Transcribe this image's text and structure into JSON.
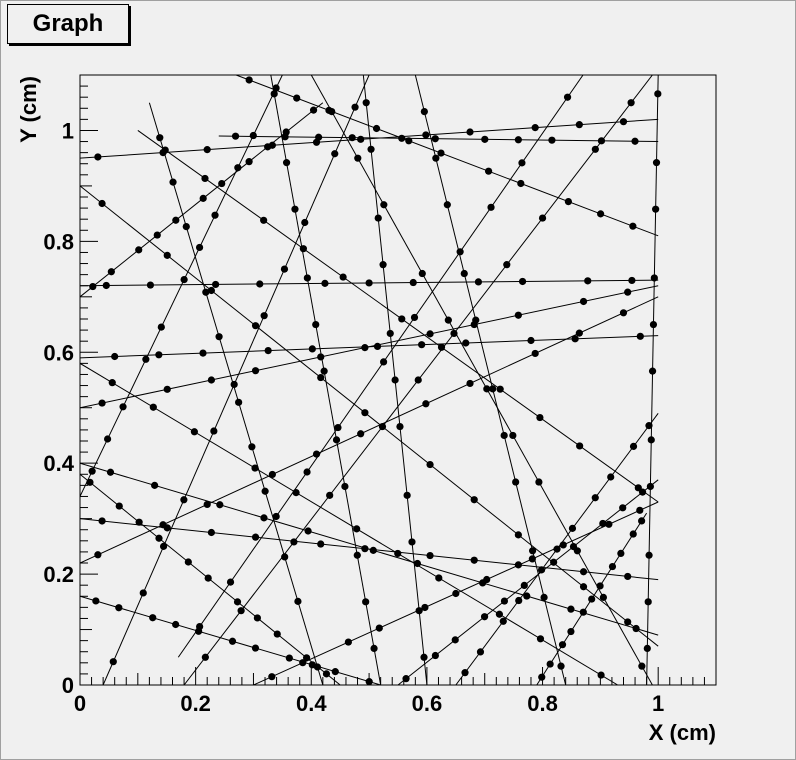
{
  "chart_data": {
    "type": "scatter",
    "title": "Graph",
    "xlabel": "X (cm)",
    "ylabel": "Y (cm)",
    "xlim": [
      0,
      1.1
    ],
    "ylim": [
      0,
      1.1
    ],
    "xticks": [
      "0",
      "0.2",
      "0.4",
      "0.6",
      "0.8",
      "1"
    ],
    "yticks": [
      "0",
      "0.2",
      "0.4",
      "0.6",
      "0.8",
      "1"
    ],
    "grid": false,
    "description_lines": [
      [
        [
          0.0,
          0.95
        ],
        [
          1.0,
          1.02
        ]
      ],
      [
        [
          0.0,
          0.72
        ],
        [
          1.0,
          0.73
        ]
      ],
      [
        [
          0.0,
          0.59
        ],
        [
          1.0,
          0.63
        ]
      ],
      [
        [
          0.0,
          0.5
        ],
        [
          1.0,
          0.72
        ]
      ],
      [
        [
          0.0,
          0.7
        ],
        [
          0.42,
          1.05
        ]
      ],
      [
        [
          0.33,
          1.1
        ],
        [
          0.52,
          0.0
        ]
      ],
      [
        [
          0.49,
          1.1
        ],
        [
          0.6,
          0.0
        ]
      ],
      [
        [
          0.12,
          1.05
        ],
        [
          0.42,
          0.0
        ]
      ],
      [
        [
          0.0,
          0.38
        ],
        [
          0.45,
          0.0
        ]
      ],
      [
        [
          0.0,
          0.16
        ],
        [
          0.52,
          0.0
        ]
      ],
      [
        [
          0.0,
          0.22
        ],
        [
          1.0,
          0.7
        ]
      ],
      [
        [
          0.18,
          0.0
        ],
        [
          0.99,
          1.1
        ]
      ],
      [
        [
          0.0,
          0.58
        ],
        [
          0.93,
          0.0
        ]
      ],
      [
        [
          0.0,
          0.9
        ],
        [
          1.0,
          0.07
        ]
      ],
      [
        [
          0.1,
          1.0
        ],
        [
          1.0,
          0.33
        ]
      ],
      [
        [
          0.27,
          1.1
        ],
        [
          1.0,
          0.81
        ]
      ],
      [
        [
          0.65,
          0.0
        ],
        [
          1.0,
          0.49
        ]
      ],
      [
        [
          0.4,
          1.1
        ],
        [
          0.99,
          0.0
        ]
      ],
      [
        [
          0.0,
          0.3
        ],
        [
          1.0,
          0.19
        ]
      ],
      [
        [
          0.0,
          0.4
        ],
        [
          1.0,
          0.09
        ]
      ],
      [
        [
          0.55,
          0.0
        ],
        [
          1.0,
          0.37
        ]
      ],
      [
        [
          0.79,
          0.0
        ],
        [
          0.98,
          0.31
        ]
      ],
      [
        [
          0.58,
          1.1
        ],
        [
          0.84,
          0.0
        ]
      ],
      [
        [
          0.04,
          0.0
        ],
        [
          0.5,
          1.1
        ]
      ],
      [
        [
          0.17,
          0.05
        ],
        [
          0.87,
          1.1
        ]
      ],
      [
        [
          1.0,
          1.1
        ],
        [
          0.98,
          0.0
        ]
      ],
      [
        [
          0.3,
          0.0
        ],
        [
          1.0,
          0.33
        ]
      ],
      [
        [
          0.0,
          0.34
        ],
        [
          0.35,
          1.1
        ]
      ],
      [
        [
          0.24,
          0.99
        ],
        [
          1.0,
          0.98
        ]
      ]
    ],
    "points_per_line": 11,
    "marker": "filled-circle",
    "marker_color": "#000000",
    "line_color": "#000000"
  }
}
